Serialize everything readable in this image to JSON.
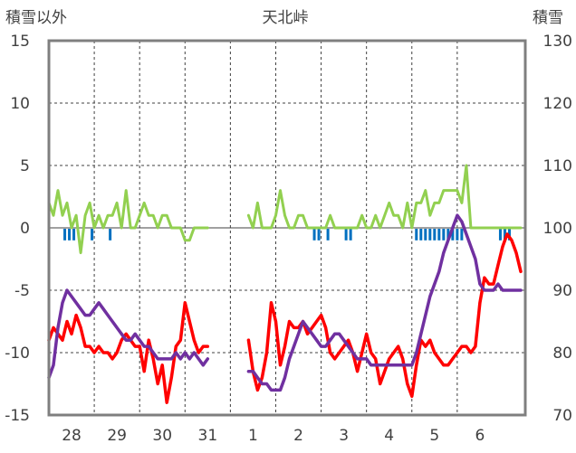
{
  "chart_data": {
    "type": "line",
    "title": "天北峠",
    "left_axis_title": "積雪以外",
    "right_axis_title": "積雪",
    "left_ylim": [
      -15,
      15
    ],
    "left_ticks": [
      15,
      10,
      5,
      0,
      -5,
      -10,
      -15
    ],
    "right_ylim": [
      70,
      130
    ],
    "right_ticks": [
      130,
      120,
      110,
      100,
      90,
      80,
      70
    ],
    "xlim": [
      0,
      10.5
    ],
    "day_labels": [
      "28",
      "29",
      "30",
      "31",
      "1",
      "2",
      "3",
      "4",
      "5",
      "6"
    ],
    "grid": true,
    "colors": {
      "temperature": "#ff0000",
      "snow_depth": "#7030a0",
      "wind": "#92d050",
      "precip": "#0070c0",
      "frame": "#7f7f7f",
      "grid": "#404040"
    },
    "series": [
      {
        "key": "temperature",
        "axis": "left",
        "x": [
          0.0,
          0.1,
          0.2,
          0.3,
          0.4,
          0.5,
          0.6,
          0.7,
          0.8,
          0.9,
          1.0,
          1.1,
          1.2,
          1.3,
          1.4,
          1.5,
          1.6,
          1.7,
          1.8,
          1.9,
          2.0,
          2.1,
          2.2,
          2.3,
          2.4,
          2.5,
          2.6,
          2.7,
          2.8,
          2.9,
          3.0,
          3.1,
          3.2,
          3.3,
          3.4,
          3.5,
          null,
          4.4,
          4.5,
          4.6,
          4.7,
          4.8,
          4.9,
          5.0,
          5.1,
          5.2,
          5.3,
          5.4,
          5.5,
          5.6,
          5.7,
          5.8,
          5.9,
          6.0,
          6.1,
          6.2,
          6.3,
          6.4,
          6.5,
          6.6,
          6.7,
          6.8,
          6.9,
          7.0,
          7.1,
          7.2,
          7.3,
          7.4,
          7.5,
          7.6,
          7.7,
          7.8,
          7.9,
          8.0,
          8.1,
          8.2,
          8.3,
          8.4,
          8.5,
          8.6,
          8.7,
          8.8,
          8.9,
          9.0,
          9.1,
          9.2,
          9.3,
          9.4,
          9.5,
          9.6,
          9.7,
          9.8,
          9.9,
          10.0,
          10.1,
          10.2,
          10.3,
          10.4
        ],
        "values": [
          -9,
          -8,
          -8.5,
          -9,
          -7.5,
          -8.5,
          -7,
          -8,
          -9.5,
          -9.5,
          -10,
          -9.5,
          -10,
          -10,
          -10.5,
          -10,
          -9,
          -8.5,
          -9,
          -9.5,
          -9.5,
          -11.5,
          -9,
          -10.5,
          -12.5,
          -11,
          -14,
          -12,
          -9.5,
          -9,
          -6,
          -7.5,
          -9,
          -10,
          -9.5,
          -9.5,
          null,
          -9,
          -11.5,
          -13,
          -12,
          -10,
          -6,
          -7.5,
          -11,
          -9.5,
          -7.5,
          -8,
          -8,
          -7.5,
          -8.5,
          -8,
          -7.5,
          -7,
          -8,
          -10,
          -10.5,
          -10,
          -9.5,
          -9,
          -10,
          -11.5,
          -10,
          -8.5,
          -10,
          -10.5,
          -12.5,
          -11.5,
          -10.5,
          -10,
          -9.5,
          -10.5,
          -12.5,
          -13.5,
          -11,
          -9,
          -9.5,
          -9,
          -10,
          -10.5,
          -11,
          -11,
          -10.5,
          -10,
          -9.5,
          -9.5,
          -10,
          -9.5,
          -6,
          -4,
          -4.5,
          -4.5,
          -3,
          -1.5,
          -0.5,
          -1,
          -2,
          -3.5
        ]
      },
      {
        "key": "snow_depth",
        "axis": "right",
        "x": [
          0.0,
          0.1,
          0.2,
          0.3,
          0.4,
          0.5,
          0.6,
          0.7,
          0.8,
          0.9,
          1.0,
          1.1,
          1.2,
          1.3,
          1.4,
          1.5,
          1.6,
          1.7,
          1.8,
          1.9,
          2.0,
          2.1,
          2.2,
          2.3,
          2.4,
          2.5,
          2.6,
          2.7,
          2.8,
          2.9,
          3.0,
          3.1,
          3.2,
          3.3,
          3.4,
          3.5,
          null,
          4.4,
          4.5,
          4.6,
          4.7,
          4.8,
          4.9,
          5.0,
          5.1,
          5.2,
          5.3,
          5.4,
          5.5,
          5.6,
          5.7,
          5.8,
          5.9,
          6.0,
          6.1,
          6.2,
          6.3,
          6.4,
          6.5,
          6.6,
          6.7,
          6.8,
          6.9,
          7.0,
          7.1,
          7.2,
          7.3,
          7.4,
          7.5,
          7.6,
          7.7,
          7.8,
          7.9,
          8.0,
          8.1,
          8.2,
          8.3,
          8.4,
          8.5,
          8.6,
          8.7,
          8.8,
          8.9,
          9.0,
          9.1,
          9.2,
          9.3,
          9.4,
          9.5,
          9.6,
          9.7,
          9.8,
          9.9,
          10.0,
          10.1,
          10.2,
          10.3,
          10.4
        ],
        "values": [
          76,
          78,
          84,
          88,
          90,
          89,
          88,
          87,
          86,
          86,
          87,
          88,
          87,
          86,
          85,
          84,
          83,
          82,
          82,
          83,
          82,
          81,
          81,
          80,
          79,
          79,
          79,
          79,
          80,
          79,
          80,
          79,
          80,
          79,
          78,
          79,
          null,
          77,
          77,
          76,
          75,
          75,
          74,
          74,
          74,
          76,
          79,
          81,
          83,
          85,
          84,
          83,
          82,
          81,
          81,
          82,
          83,
          83,
          82,
          81,
          80,
          79,
          79,
          79,
          78,
          78,
          78,
          78,
          78,
          78,
          78,
          78,
          78,
          78,
          80,
          83,
          86,
          89,
          91,
          93,
          96,
          98,
          100,
          102,
          101,
          99,
          97,
          95,
          91,
          90,
          90,
          90,
          91,
          90,
          90,
          90,
          90,
          90
        ]
      },
      {
        "key": "wind",
        "axis": "left",
        "x": [
          0.0,
          0.1,
          0.2,
          0.3,
          0.4,
          0.5,
          0.6,
          0.7,
          0.8,
          0.9,
          1.0,
          1.1,
          1.2,
          1.3,
          1.4,
          1.5,
          1.6,
          1.7,
          1.8,
          1.9,
          2.0,
          2.1,
          2.2,
          2.3,
          2.4,
          2.5,
          2.6,
          2.7,
          2.8,
          2.9,
          3.0,
          3.1,
          3.2,
          3.3,
          3.4,
          3.5,
          null,
          4.4,
          4.5,
          4.6,
          4.7,
          4.8,
          4.9,
          5.0,
          5.1,
          5.2,
          5.3,
          5.4,
          5.5,
          5.6,
          5.7,
          5.8,
          5.9,
          6.0,
          6.1,
          6.2,
          6.3,
          6.4,
          6.5,
          6.6,
          6.7,
          6.8,
          6.9,
          7.0,
          7.1,
          7.2,
          7.3,
          7.4,
          7.5,
          7.6,
          7.7,
          7.8,
          7.9,
          8.0,
          8.1,
          8.2,
          8.3,
          8.4,
          8.5,
          8.6,
          8.7,
          8.8,
          8.9,
          9.0,
          9.1,
          9.2,
          9.3,
          9.4,
          9.5,
          9.6,
          9.7,
          9.8,
          9.9,
          10.0,
          10.1,
          10.2,
          10.3,
          10.4
        ],
        "values": [
          2,
          1,
          3,
          1,
          2,
          0,
          1,
          -2,
          1,
          2,
          0,
          1,
          0,
          1,
          1,
          2,
          0,
          3,
          0,
          0,
          1,
          2,
          1,
          1,
          0,
          1,
          1,
          0,
          0,
          0,
          -1,
          -1,
          0,
          0,
          0,
          0,
          null,
          1,
          0,
          2,
          0,
          0,
          0,
          1,
          3,
          1,
          0,
          0,
          1,
          1,
          0,
          0,
          0,
          0,
          0,
          1,
          0,
          0,
          0,
          0,
          0,
          0,
          1,
          0,
          0,
          1,
          0,
          1,
          2,
          1,
          1,
          0,
          2,
          0,
          2,
          2,
          3,
          1,
          2,
          2,
          3,
          3,
          3,
          3,
          2,
          5,
          0,
          0,
          0,
          0,
          0,
          0,
          0,
          0,
          0,
          0,
          0,
          0
        ]
      }
    ],
    "precip_bars": {
      "axis": "left",
      "x": [
        0.35,
        0.45,
        0.55,
        0.95,
        1.35,
        5.85,
        5.95,
        6.15,
        6.55,
        6.65,
        8.1,
        8.2,
        8.3,
        8.4,
        8.5,
        8.6,
        8.7,
        8.8,
        8.9,
        9.0,
        9.1,
        9.95,
        10.05,
        10.15
      ],
      "values": [
        -1,
        -1,
        -1,
        -1,
        -1,
        -1,
        -1,
        -1,
        -1,
        -1,
        -1,
        -1,
        -1,
        -1,
        -1,
        -1,
        -1,
        -1,
        -1,
        -1,
        -1,
        -1,
        -1,
        -1
      ]
    }
  }
}
